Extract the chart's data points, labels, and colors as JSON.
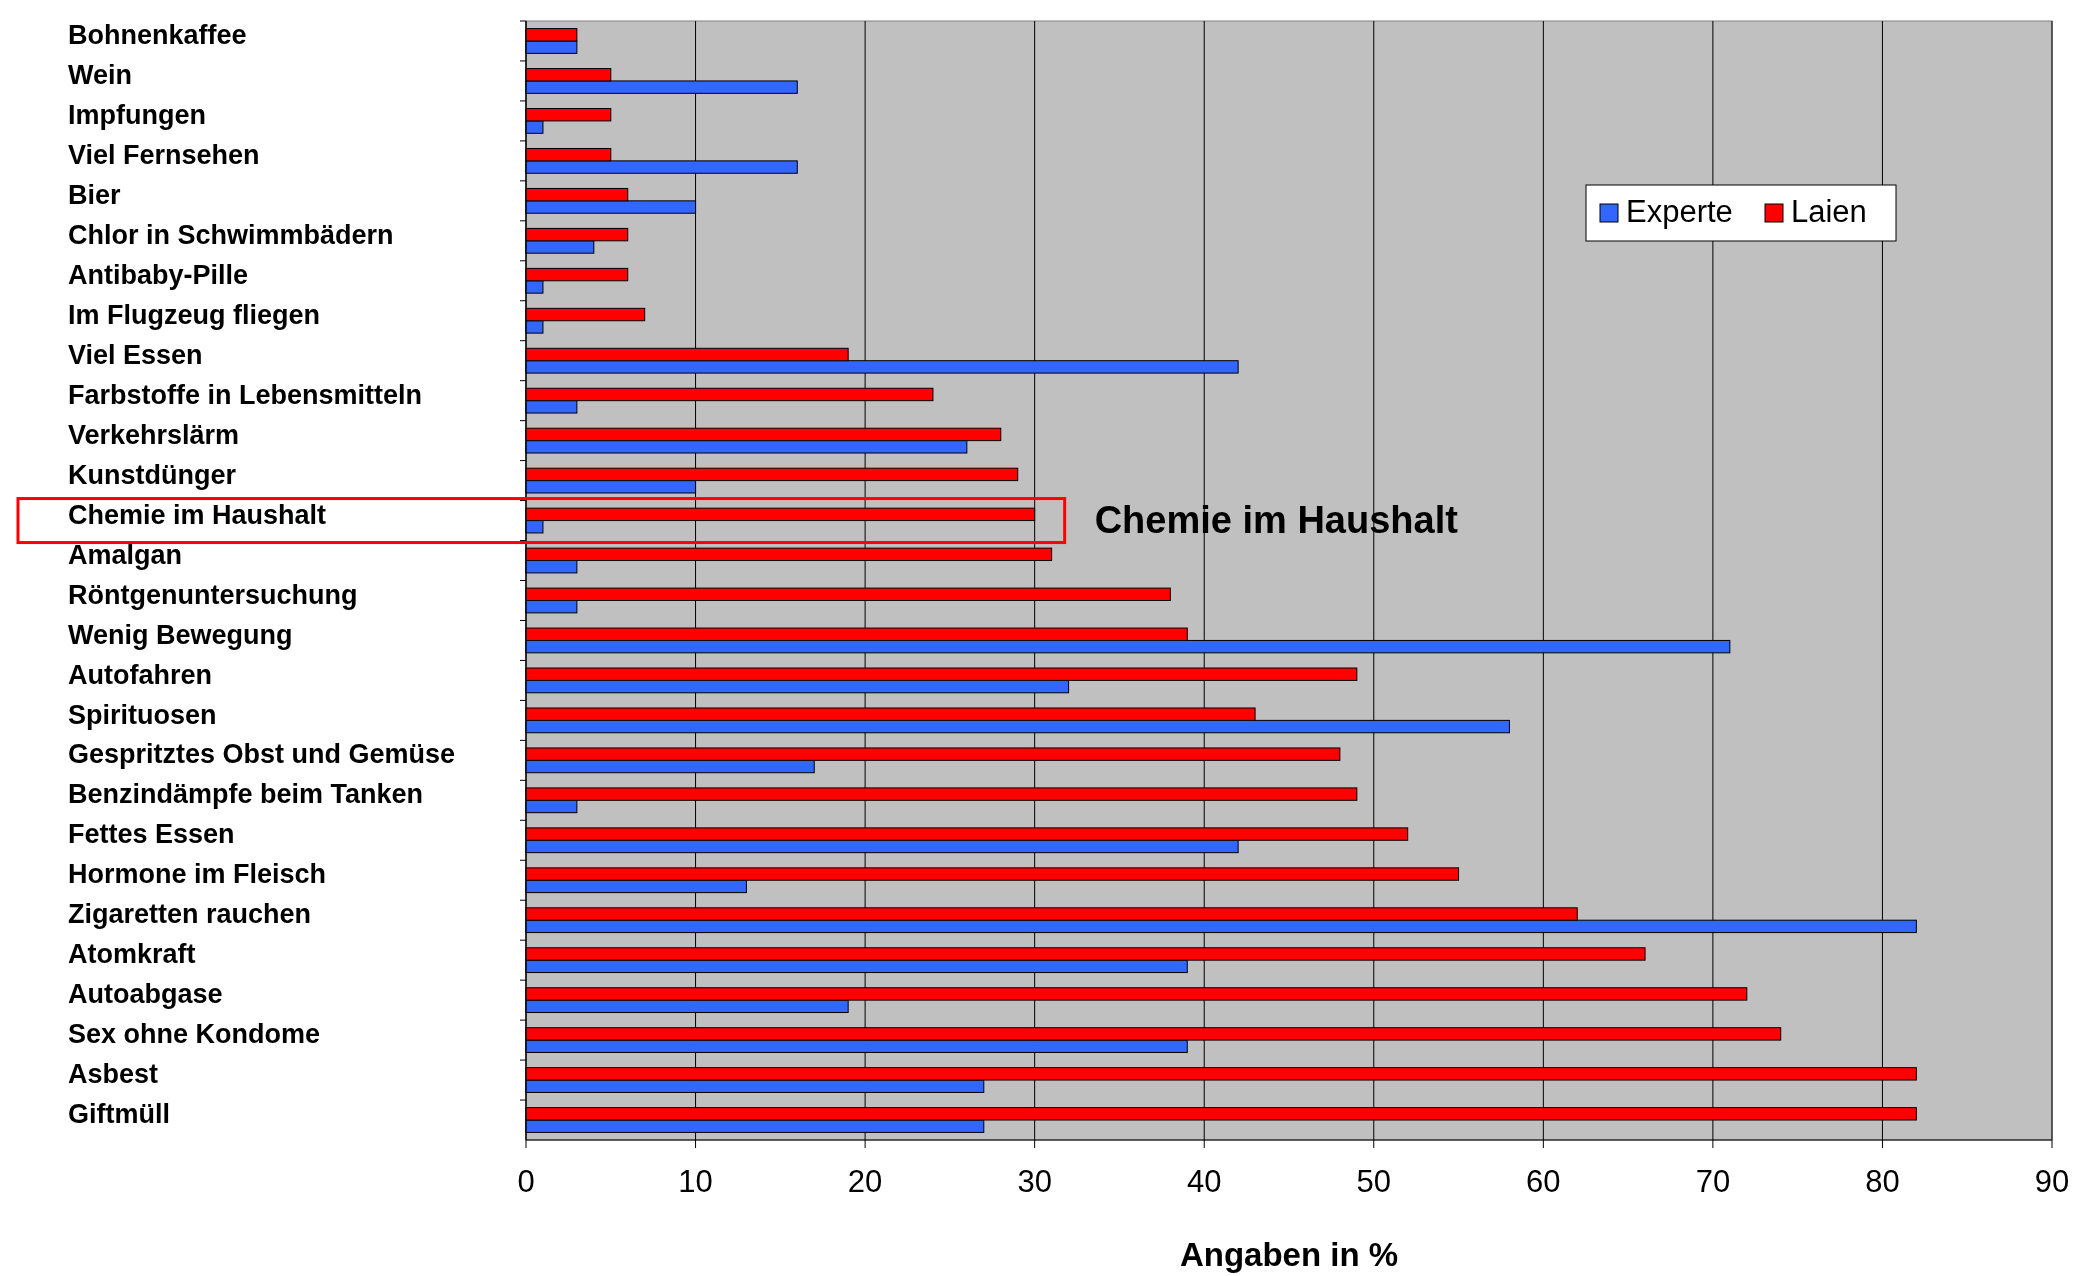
{
  "chart_data": {
    "type": "bar",
    "orientation": "horizontal",
    "xlabel": "Angaben in %",
    "categories": [
      "Bohnenkaffee",
      "Wein",
      "Impfungen",
      "Viel Fernsehen",
      "Bier",
      "Chlor in Schwimmbädern",
      "Antibaby-Pille",
      "Im Flugzeug fliegen",
      "Viel Essen",
      "Farbstoffe in Lebensmitteln",
      "Verkehrslärm",
      "Kunstdünger",
      "Chemie im Haushalt",
      "Amalgan",
      "Röntgenuntersuchung",
      "Wenig Bewegung",
      "Autofahren",
      "Spirituosen",
      "Gespritztes Obst und Gemüse",
      "Benzindämpfe beim Tanken",
      "Fettes Essen",
      "Hormone im Fleisch",
      "Zigaretten rauchen",
      "Atomkraft",
      "Autoabgase",
      "Sex ohne Kondome",
      "Asbest",
      "Giftmüll"
    ],
    "series": [
      {
        "name": "Experte",
        "color": "#3366ff",
        "values": [
          3,
          16,
          1,
          16,
          10,
          4,
          1,
          1,
          42,
          3,
          26,
          10,
          1,
          3,
          3,
          71,
          32,
          58,
          17,
          3,
          42,
          13,
          82,
          39,
          19,
          39,
          27,
          27
        ]
      },
      {
        "name": "Laien",
        "color": "#ff0000",
        "values": [
          3,
          5,
          5,
          5,
          6,
          6,
          6,
          7,
          19,
          24,
          28,
          29,
          30,
          31,
          38,
          39,
          49,
          43,
          48,
          49,
          52,
          55,
          62,
          66,
          72,
          74,
          82,
          82
        ]
      }
    ],
    "xlim": [
      0,
      90
    ],
    "xticks": [
      0,
      10,
      20,
      30,
      40,
      50,
      60,
      70,
      80,
      90
    ],
    "grid": "x",
    "legend": "top right",
    "annotations": [
      {
        "text": "Chemie im Haushalt",
        "x": 30,
        "y": "Chemie im Haushalt"
      }
    ]
  }
}
